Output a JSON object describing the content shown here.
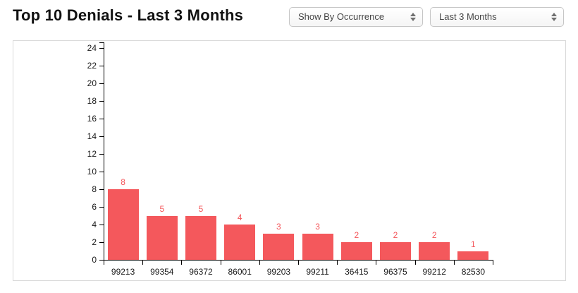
{
  "header": {
    "title": "Top 10 Denials - Last 3 Months",
    "show_by_select": {
      "selected": "Show By Occurrence",
      "icon": "up-down-stepper-icon"
    },
    "period_select": {
      "selected": "Last 3 Months",
      "icon": "up-down-stepper-icon"
    }
  },
  "chart_data": {
    "type": "bar",
    "title": "Top 10 Denials - Last 3 Months",
    "categories": [
      "99213",
      "99354",
      "96372",
      "86001",
      "99203",
      "99211",
      "36415",
      "96375",
      "99212",
      "82530"
    ],
    "values": [
      8,
      5,
      5,
      4,
      3,
      3,
      2,
      2,
      2,
      1
    ],
    "data_labels": [
      8,
      5,
      5,
      4,
      3,
      3,
      2,
      2,
      2,
      1
    ],
    "xlabel": "",
    "ylabel": "",
    "ylim": [
      0,
      25
    ],
    "y_ticks": [
      0,
      2,
      4,
      6,
      8,
      10,
      12,
      14,
      16,
      18,
      20,
      22,
      24
    ],
    "grid": false,
    "legend": "none",
    "bar_color": "#f4585c",
    "value_label_color": "#f4585c",
    "axis_color": "#000000"
  }
}
